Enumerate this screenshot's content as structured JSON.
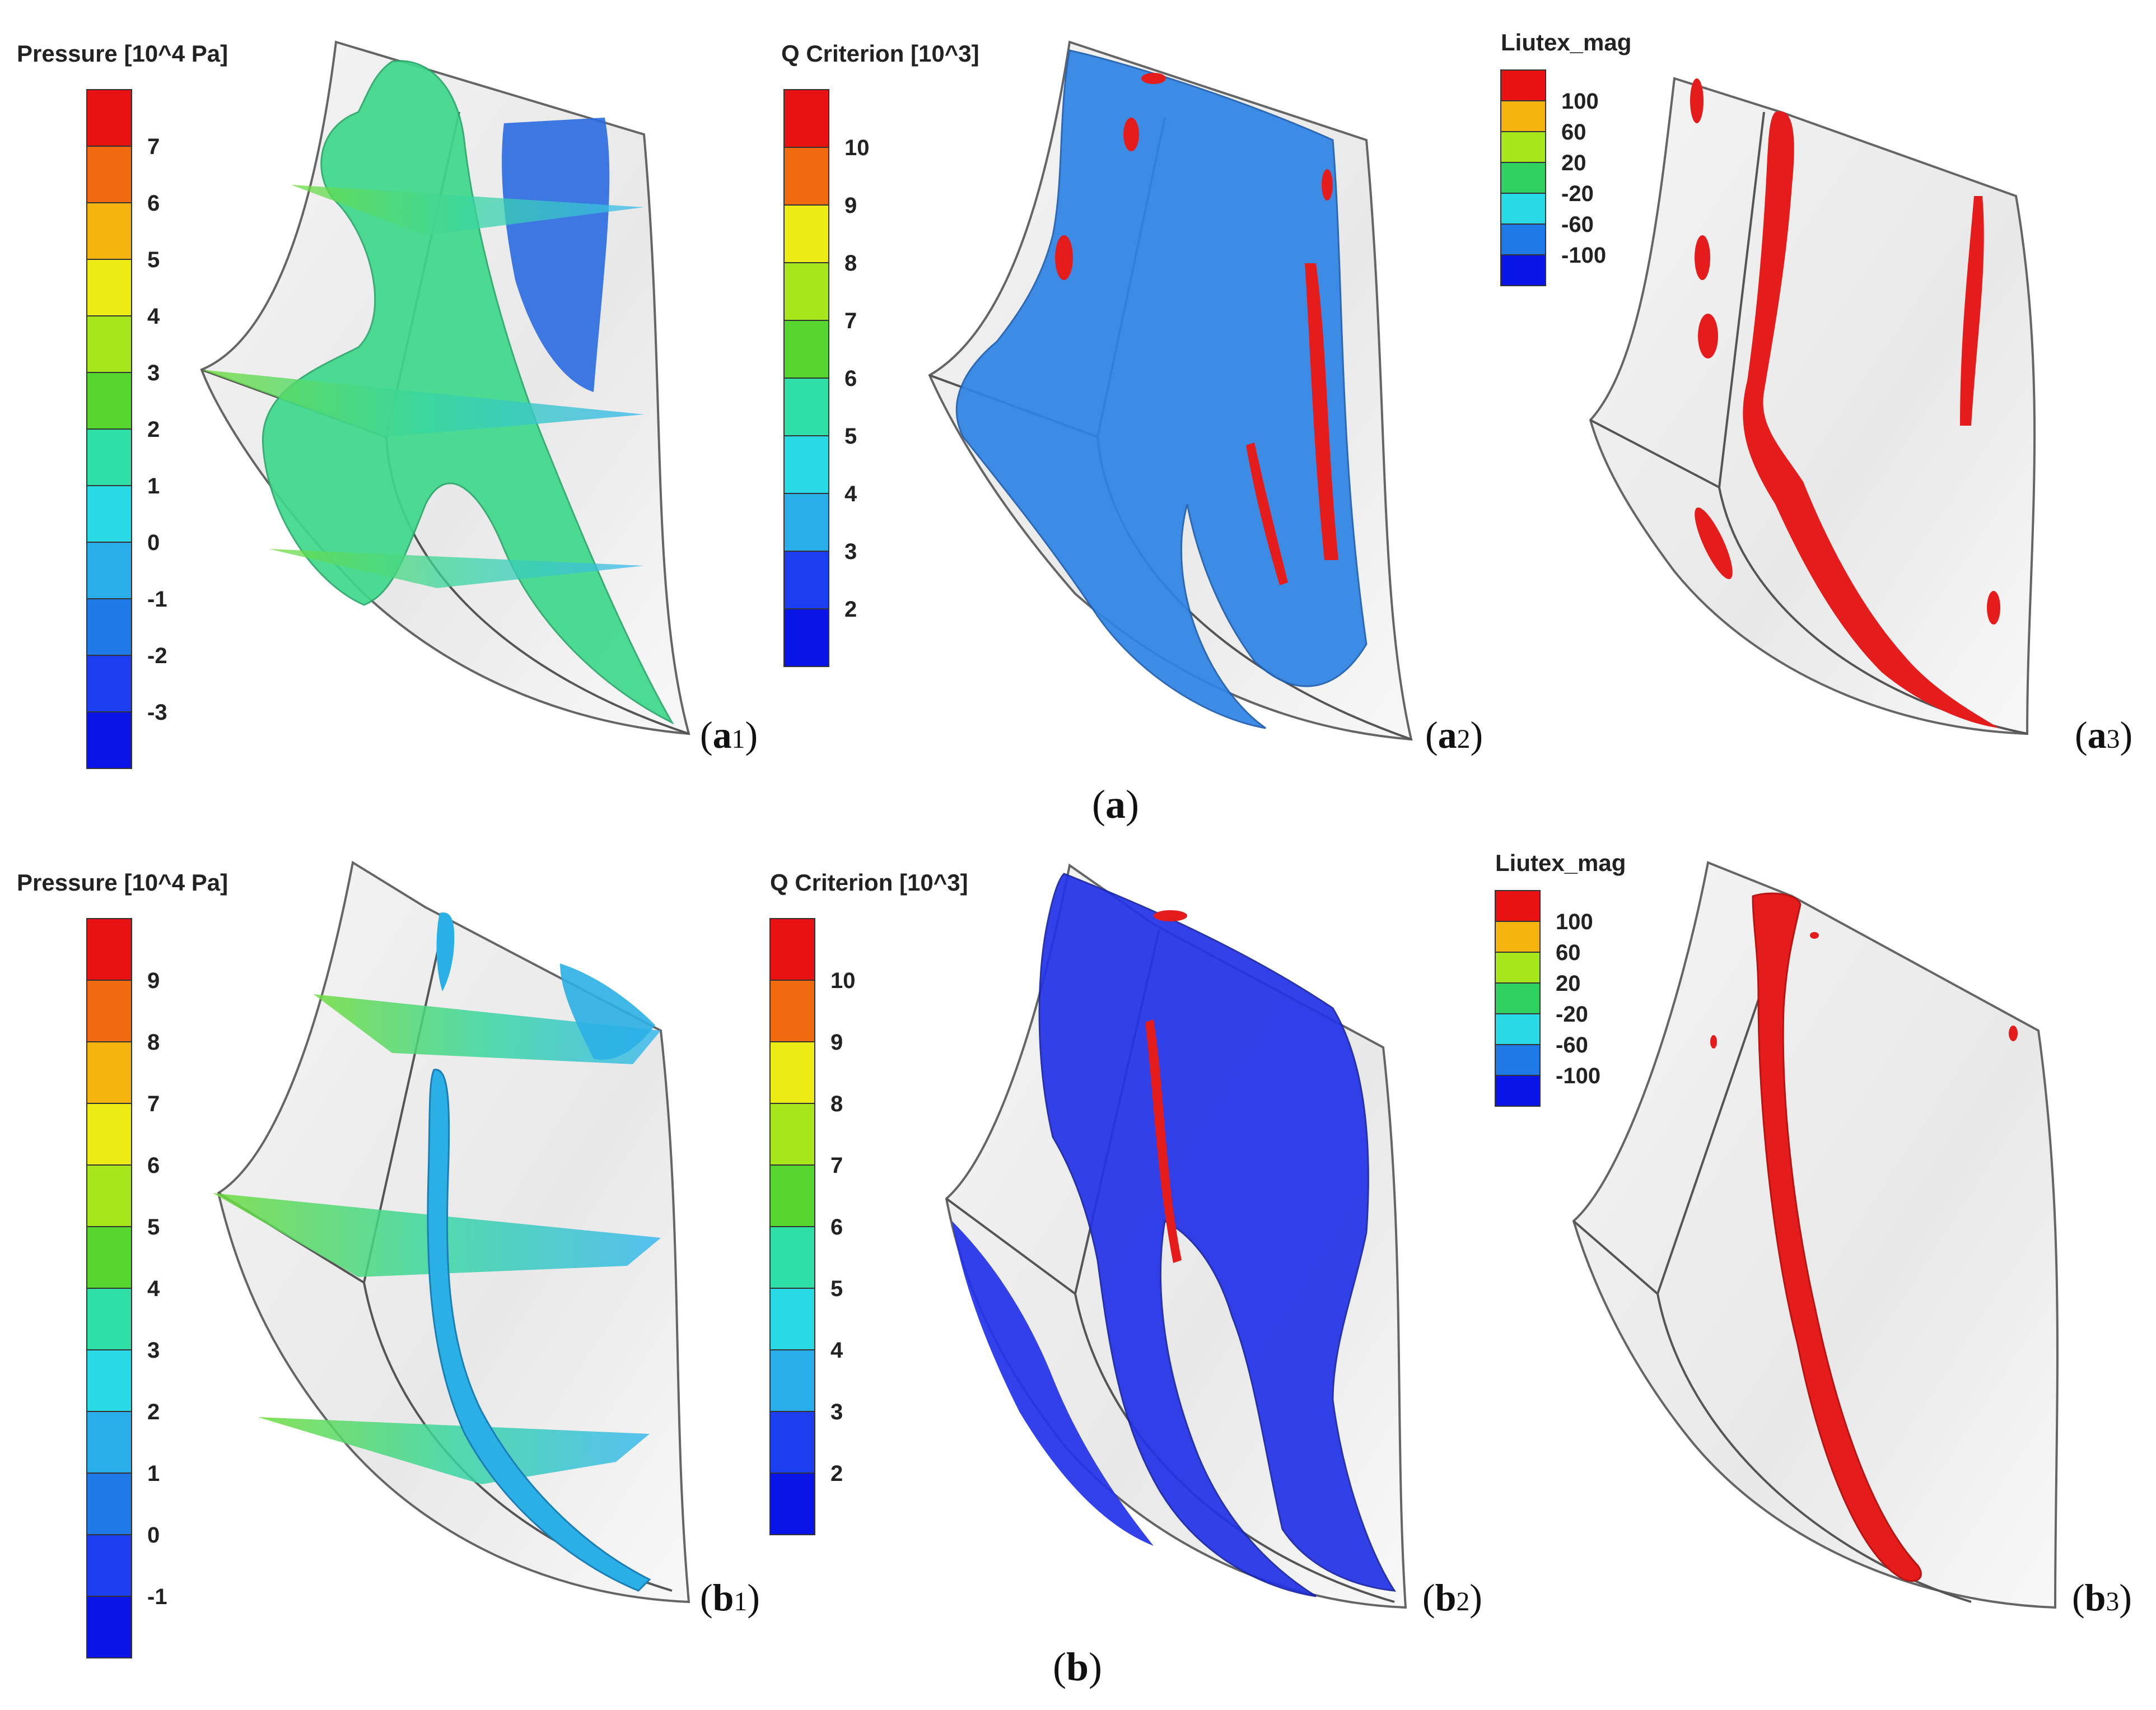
{
  "figure": {
    "row_a": {
      "caption": "(a)",
      "pressure": {
        "legend_title": "Pressure [10^4 Pa]",
        "ticks": [
          "7",
          "6",
          "5",
          "4",
          "3",
          "2",
          "1",
          "0",
          "-1",
          "-2",
          "-3"
        ],
        "panel_label": "(a1)"
      },
      "q_criterion": {
        "legend_title": "Q Criterion [10^3]",
        "ticks": [
          "10",
          "9",
          "8",
          "7",
          "6",
          "5",
          "4",
          "3",
          "2"
        ],
        "panel_label": "(a2)"
      },
      "liutex": {
        "legend_title": "Liutex_mag",
        "ticks": [
          "100",
          "60",
          "20",
          "-20",
          "-60",
          "-100"
        ],
        "panel_label": "(a3)"
      }
    },
    "row_b": {
      "caption": "(b)",
      "pressure": {
        "legend_title": "Pressure [10^4 Pa]",
        "ticks": [
          "9",
          "8",
          "7",
          "6",
          "5",
          "4",
          "3",
          "2",
          "1",
          "0",
          "-1"
        ],
        "panel_label": "(b1)"
      },
      "q_criterion": {
        "legend_title": "Q Criterion [10^3]",
        "ticks": [
          "10",
          "9",
          "8",
          "7",
          "6",
          "5",
          "4",
          "3",
          "2"
        ],
        "panel_label": "(b2)"
      },
      "liutex": {
        "legend_title": "Liutex_mag",
        "ticks": [
          "100",
          "60",
          "20",
          "-20",
          "-60",
          "-100"
        ],
        "panel_label": "(b3)"
      }
    },
    "colorbar_colors": [
      "#e81212",
      "#f26a10",
      "#f5b40d",
      "#ecec14",
      "#a8e61c",
      "#55d62e",
      "#2ed160",
      "#2ee0a6",
      "#28d9e6",
      "#2aaeea",
      "#1f7ae8",
      "#1b3ff0",
      "#0b14e6"
    ],
    "surface_colors": {
      "pressure_iso": "#3fd98c",
      "pressure_low": "#2a6ae0",
      "q_iso_a": "#2f85e6",
      "q_iso_b": "#2433e8",
      "liutex_iso": "#e51c1c",
      "blade": "#e8e8e8"
    }
  }
}
